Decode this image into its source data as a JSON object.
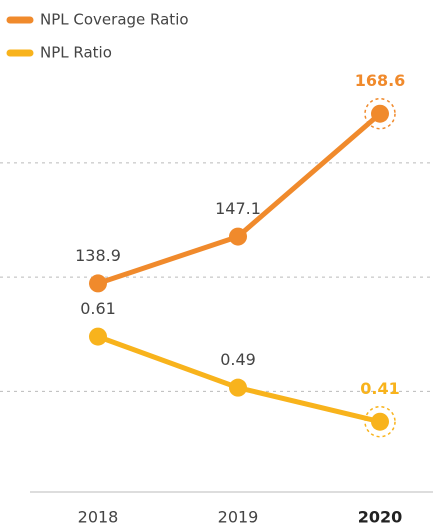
{
  "chart_data": {
    "type": "line",
    "categories": [
      "2018",
      "2019",
      "2020"
    ],
    "series": [
      {
        "name": "NPL Coverage Ratio",
        "color": "#f08a2c",
        "values": [
          138.9,
          147.1,
          168.6
        ]
      },
      {
        "name": "NPL Ratio",
        "color": "#f8b31c",
        "values": [
          0.61,
          0.49,
          0.41
        ],
        "axis": "y2"
      }
    ],
    "ylim": [
      108,
      178
    ],
    "yticks": [
      120,
      140,
      160
    ],
    "y2lim": [
      0.32,
      1.26
    ],
    "grid": true,
    "legend": "top-left"
  }
}
